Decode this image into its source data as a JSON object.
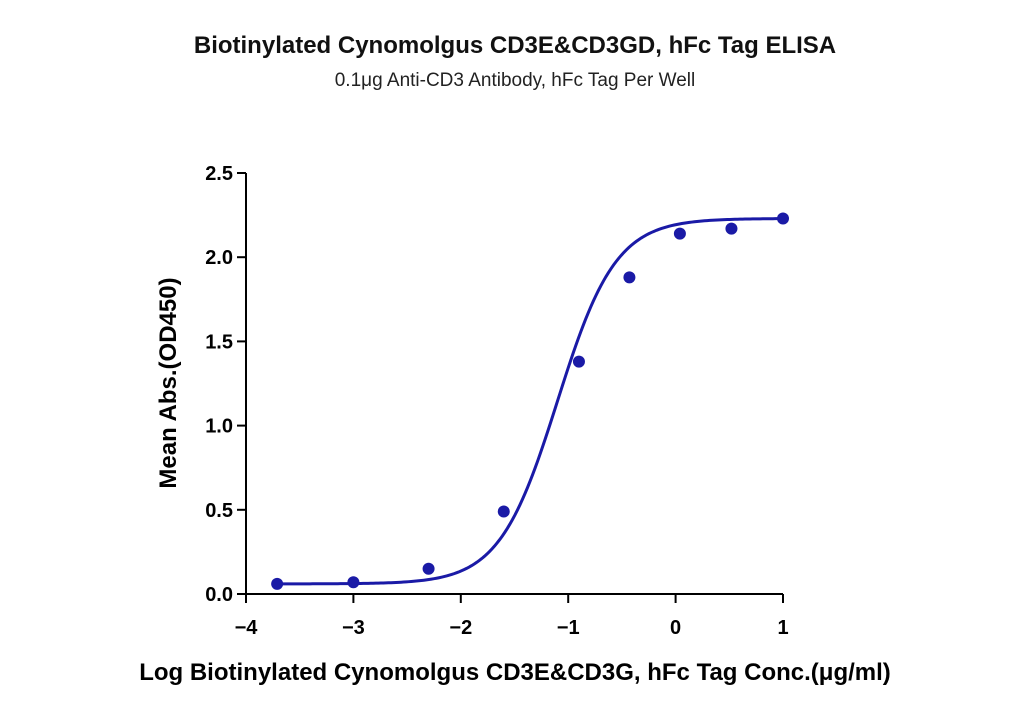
{
  "chart_data": {
    "type": "scatter",
    "title": "Biotinylated Cynomolgus CD3E&CD3GD, hFc Tag ELISA",
    "subtitle": "0.1μg Anti-CD3 Antibody, hFc Tag Per Well",
    "xlabel": "Log Biotinylated Cynomolgus CD3E&CD3G, hFc Tag Conc.(μg/ml)",
    "ylabel": "Mean Abs.(OD450)",
    "xlim": [
      -4,
      1
    ],
    "ylim": [
      0,
      2.5
    ],
    "x_ticks": [
      "-4",
      "-3",
      "-2",
      "-1",
      "0",
      "1"
    ],
    "y_ticks": [
      "0.0",
      "0.5",
      "1.0",
      "1.5",
      "2.0",
      "2.5"
    ],
    "grid": false,
    "colors": {
      "series": "#1a1aa6",
      "axis": "#000000"
    },
    "series": [
      {
        "x": [
          -3.71,
          -3.0,
          -2.3,
          -1.6,
          -0.9,
          -0.43,
          0.04,
          0.52,
          1.0
        ],
        "y": [
          0.06,
          0.07,
          0.15,
          0.49,
          1.38,
          1.88,
          2.14,
          2.17,
          2.23
        ]
      }
    ],
    "fit": {
      "model": "4PL",
      "bottom": 0.06,
      "top": 2.23,
      "logEC50": -1.1,
      "hill": 1.6
    }
  }
}
